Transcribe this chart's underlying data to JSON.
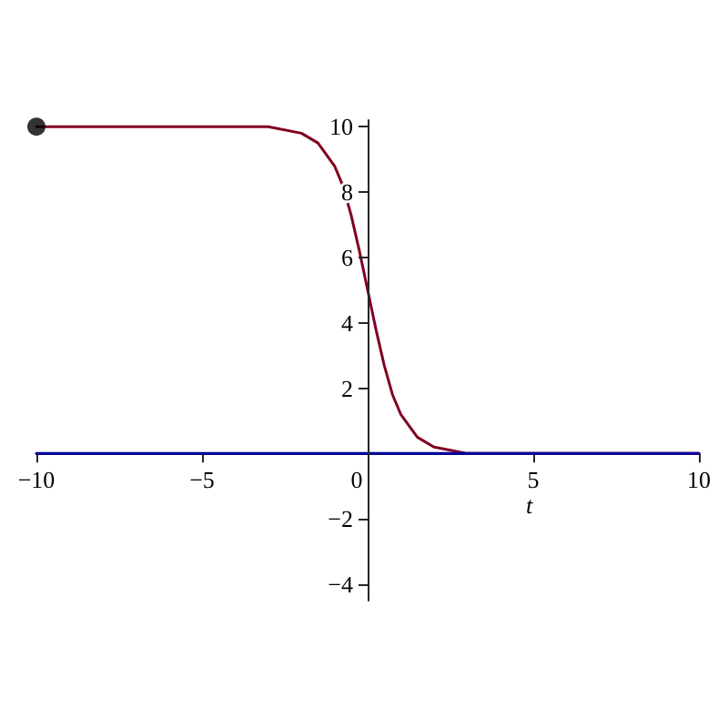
{
  "chart_data": {
    "type": "line",
    "xlabel": "t",
    "xlim": [
      -10,
      10
    ],
    "xticks": [
      -10,
      -5,
      0,
      5,
      10
    ],
    "ylim": [
      -4.5,
      10.2
    ],
    "yticks": [
      -4,
      -2,
      2,
      4,
      6,
      8,
      10
    ],
    "grid": false,
    "marker": "none",
    "series": [
      {
        "color": "#800020",
        "x": [
          -10,
          -4,
          -3,
          -2,
          -1.5,
          -1,
          -0.75,
          -0.5,
          -0.25,
          0,
          0.25,
          0.5,
          0.75,
          1,
          1.5,
          2,
          2.5,
          3,
          4,
          10
        ],
        "values": [
          10,
          10,
          10,
          9.8,
          9.5,
          8.8,
          8.2,
          7.3,
          6.2,
          5,
          3.8,
          2.7,
          1.8,
          1.2,
          0.5,
          0.2,
          0.1,
          0,
          0,
          0
        ]
      },
      {
        "color": "#0000a0",
        "x": [
          -10,
          10
        ],
        "values": [
          0,
          0
        ]
      },
      {
        "type": "scatter",
        "color": "#000000",
        "marker": "circle",
        "x": [
          -10
        ],
        "values": [
          10
        ]
      }
    ]
  }
}
